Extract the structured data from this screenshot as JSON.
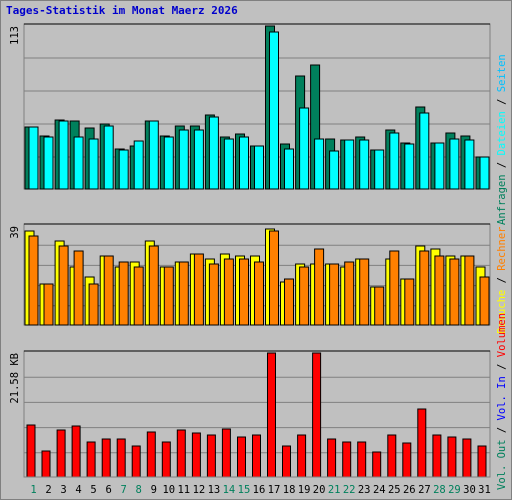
{
  "colors": {
    "title": "#0000cc",
    "anfragen": "#00805c",
    "dateien": "#00ffff",
    "seiten": "#00c0ff",
    "besuche": "#ffff00",
    "rechner": "#ff8000",
    "vol_in": "#0000ff",
    "vol_out": "#00805c",
    "volumen": "#ff0000",
    "weekday_label": "#000000",
    "weekend_label": "#00805c",
    "separator": "#000000"
  },
  "chart_data": {
    "type": "bar",
    "title": "Tages-Statistik im Monat Maerz 2026",
    "days": [
      "1",
      "2",
      "3",
      "4",
      "5",
      "6",
      "7",
      "8",
      "9",
      "10",
      "11",
      "12",
      "13",
      "14",
      "15",
      "16",
      "17",
      "18",
      "19",
      "20",
      "21",
      "22",
      "23",
      "24",
      "25",
      "26",
      "27",
      "28",
      "29",
      "30",
      "31"
    ],
    "weekend_days": [
      "1",
      "7",
      "8",
      "14",
      "15",
      "21",
      "22",
      "28",
      "29"
    ],
    "panels": [
      {
        "id": "requests",
        "max_label": "113",
        "ymax": 113,
        "series": [
          {
            "name": "Anfragen",
            "color_key": "anfragen",
            "values": [
              43,
              37,
              48,
              47,
              42,
              45,
              28,
              30,
              47,
              37,
              44,
              44,
              51,
              36,
              38,
              30,
              113,
              31,
              78,
              86,
              35,
              34,
              36,
              27,
              41,
              32,
              57,
              32,
              39,
              37,
              22
            ]
          },
          {
            "name": "Dateien",
            "color_key": "dateien",
            "values": [
              43,
              36,
              47,
              36,
              35,
              44,
              27,
              33,
              47,
              36,
              41,
              41,
              50,
              35,
              36,
              30,
              109,
              28,
              56,
              35,
              26,
              34,
              34,
              27,
              39,
              31,
              53,
              32,
              35,
              34,
              22
            ]
          }
        ],
        "axis_labels": [
          {
            "text": "Anfragen",
            "color_key": "anfragen"
          },
          {
            "text": "Dateien",
            "color_key": "dateien"
          },
          {
            "text": "Seiten",
            "color_key": "seiten"
          }
        ]
      },
      {
        "id": "visits",
        "max_label": "39",
        "ymax": 39,
        "series": [
          {
            "name": "Besuche",
            "color_key": "besuche",
            "values": [
              37,
              16,
              33,
              23,
              19,
              27,
              23,
              25,
              33,
              23,
              25,
              28,
              26,
              28,
              27,
              27,
              38,
              17,
              24,
              24,
              24,
              23,
              26,
              15,
              26,
              18,
              31,
              30,
              27,
              27,
              23
            ]
          },
          {
            "name": "Rechner",
            "color_key": "rechner",
            "values": [
              35,
              16,
              31,
              29,
              16,
              27,
              25,
              23,
              31,
              23,
              25,
              28,
              24,
              26,
              26,
              25,
              37,
              18,
              23,
              30,
              24,
              25,
              26,
              15,
              29,
              18,
              29,
              27,
              26,
              27,
              19
            ]
          }
        ],
        "axis_labels": [
          {
            "text": "Besuche",
            "color_key": "besuche"
          },
          {
            "text": "Rechner",
            "color_key": "rechner"
          }
        ]
      },
      {
        "id": "volume",
        "max_label": "21.58 KB",
        "ymax": 21.58,
        "series": [
          {
            "name": "Volumen",
            "color_key": "volumen",
            "values": [
              9.09,
              4.5,
              8.14,
              8.96,
              6.07,
              6.57,
              6.57,
              5.39,
              7.86,
              6.14,
              8.14,
              7.65,
              7.3,
              8.42,
              6.92,
              7.3,
              21.58,
              5.39,
              7.3,
              21.58,
              6.57,
              6.14,
              6.14,
              4.34,
              7.3,
              5.94,
              11.88,
              7.3,
              7.01,
              6.57,
              5.39
            ]
          }
        ],
        "axis_labels": [
          {
            "text": "Vol. Out",
            "color_key": "vol_out"
          },
          {
            "text": "Vol. In",
            "color_key": "vol_in"
          },
          {
            "text": "Volumen",
            "color_key": "volumen"
          }
        ]
      }
    ]
  }
}
